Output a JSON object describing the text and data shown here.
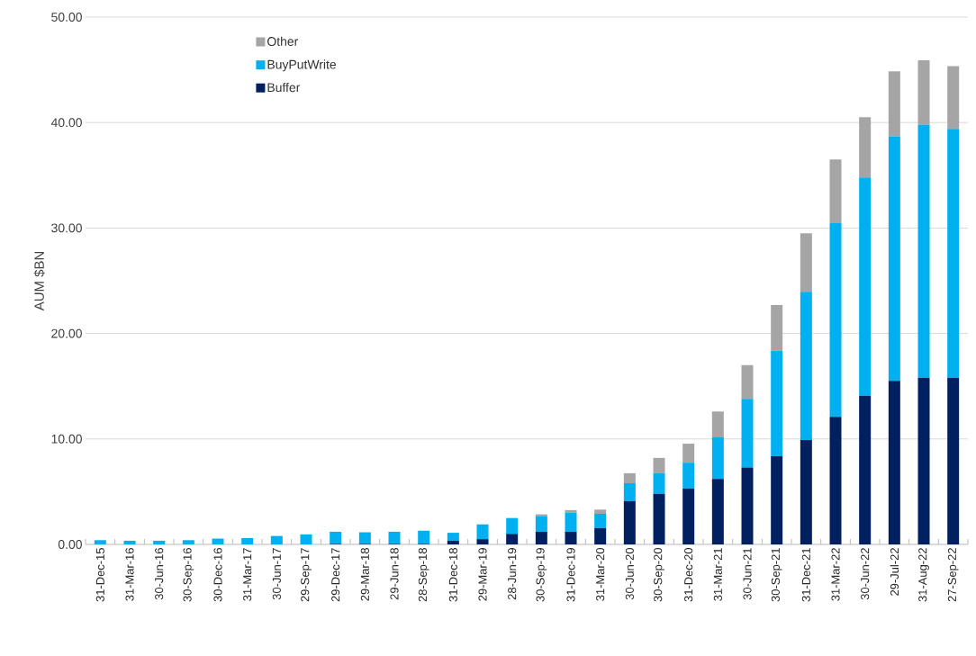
{
  "chart_data": {
    "type": "bar",
    "stacked": true,
    "ylabel": "AUM $BN",
    "categories": [
      "31-Dec-15",
      "31-Mar-16",
      "30-Jun-16",
      "30-Sep-16",
      "30-Dec-16",
      "31-Mar-17",
      "30-Jun-17",
      "29-Sep-17",
      "29-Dec-17",
      "29-Mar-18",
      "29-Jun-18",
      "28-Sep-18",
      "31-Dec-18",
      "29-Mar-19",
      "28-Jun-19",
      "30-Sep-19",
      "31-Dec-19",
      "31-Mar-20",
      "30-Jun-20",
      "30-Sep-20",
      "31-Dec-20",
      "31-Mar-21",
      "30-Jun-21",
      "30-Sep-21",
      "31-Dec-21",
      "31-Mar-22",
      "30-Jun-22",
      "29-Jul-22",
      "31-Aug-22",
      "27-Sep-22"
    ],
    "series": [
      {
        "name": "Buffer",
        "color": "#002060",
        "values": [
          0,
          0,
          0,
          0,
          0,
          0,
          0,
          0,
          0.05,
          0.05,
          0.05,
          0.05,
          0.35,
          0.5,
          1.0,
          1.2,
          1.2,
          1.55,
          4.1,
          4.8,
          5.3,
          6.2,
          7.3,
          8.35,
          9.9,
          12.1,
          14.1,
          15.5,
          15.8,
          15.8
        ]
      },
      {
        "name": "BuyPutWrite",
        "color": "#00b0f0",
        "values": [
          0.4,
          0.35,
          0.35,
          0.4,
          0.55,
          0.6,
          0.8,
          0.95,
          1.15,
          1.1,
          1.15,
          1.25,
          0.75,
          1.4,
          1.5,
          1.5,
          1.8,
          1.35,
          1.7,
          1.95,
          2.45,
          3.95,
          6.5,
          10.0,
          14.05,
          18.35,
          20.7,
          23.2,
          24.0,
          23.6
        ]
      },
      {
        "name": "Other",
        "color": "#a5a5a5",
        "values": [
          0,
          0,
          0,
          0,
          0,
          0,
          0,
          0,
          0,
          0,
          0,
          0,
          0,
          0,
          0,
          0.15,
          0.25,
          0.4,
          0.95,
          1.45,
          1.8,
          2.45,
          3.2,
          4.35,
          5.55,
          6.05,
          5.7,
          6.15,
          6.1,
          5.95
        ]
      }
    ],
    "ylim": [
      0,
      50
    ],
    "yticks": [
      {
        "value": 0,
        "label": "0.00"
      },
      {
        "value": 10,
        "label": "10.00"
      },
      {
        "value": 20,
        "label": "20.00"
      },
      {
        "value": 30,
        "label": "30.00"
      },
      {
        "value": 40,
        "label": "40.00"
      },
      {
        "value": 50,
        "label": "50.00"
      }
    ],
    "grid": "y",
    "legend": "top left"
  }
}
